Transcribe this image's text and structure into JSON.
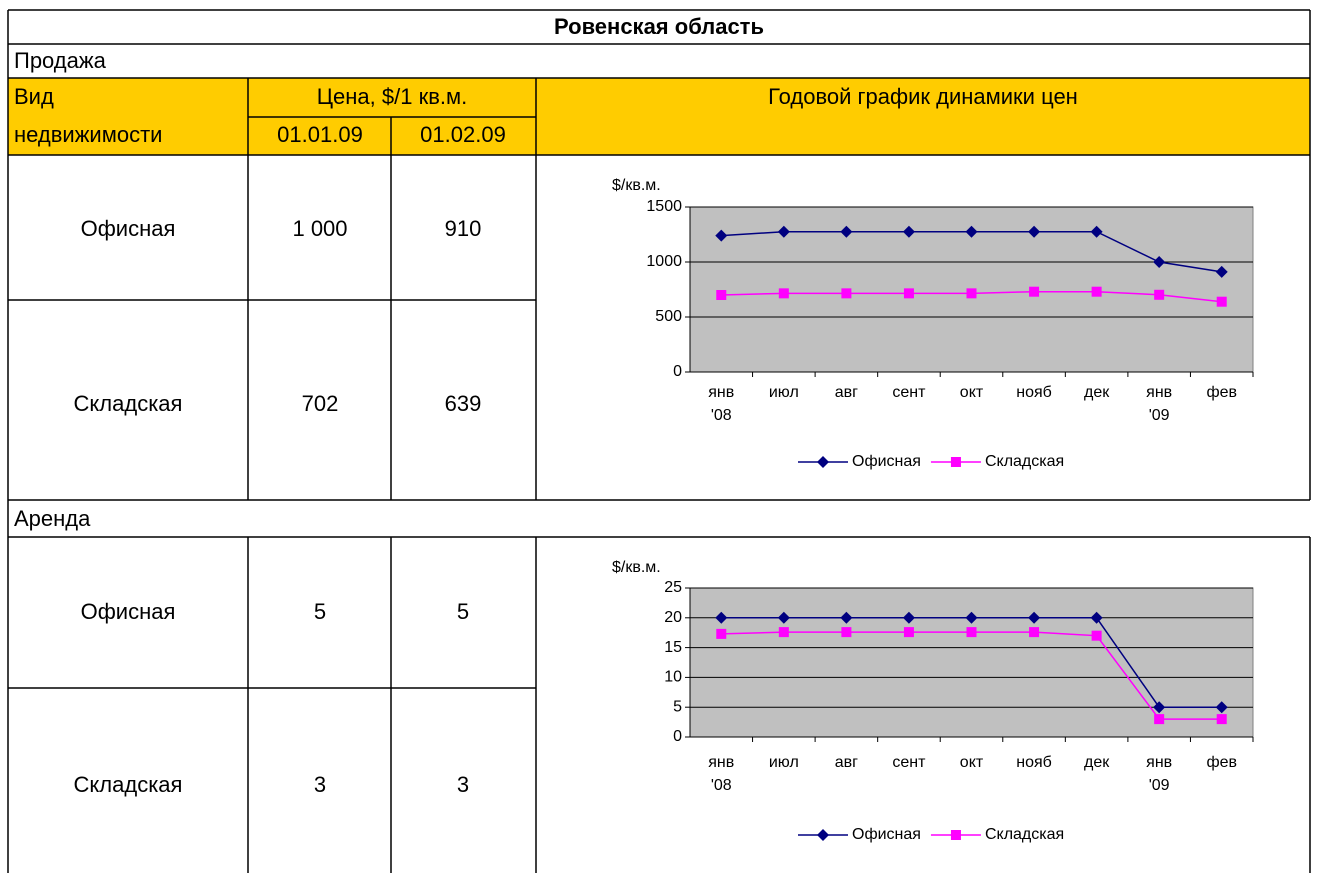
{
  "title": "Ровенская область",
  "header": {
    "type_label": [
      "Вид",
      "недвижимости"
    ],
    "price_label": "Цена, $/1 кв.м.",
    "dates": [
      "01.01.09",
      "01.02.09"
    ],
    "chart_label": "Годовой график динамики цен"
  },
  "sale": {
    "label": "Продажа",
    "rows": [
      [
        "Офисная",
        "1 000",
        "910"
      ],
      [
        "Складская",
        "702",
        "639"
      ]
    ]
  },
  "rent": {
    "label": "Аренда",
    "rows": [
      [
        "Офисная",
        "5",
        "5"
      ],
      [
        "Складская",
        "3",
        "3"
      ]
    ]
  },
  "chart_data": [
    {
      "type": "line",
      "y_label": "$/кв.м.",
      "categories": [
        "янв '08",
        "июл",
        "авг",
        "сент",
        "окт",
        "нояб",
        "дек",
        "янв '09",
        "фев"
      ],
      "series": [
        {
          "name": "Офисная",
          "color": "#000080",
          "marker": "diamond",
          "values": [
            1240,
            1275,
            1275,
            1275,
            1275,
            1275,
            1275,
            1000,
            910
          ]
        },
        {
          "name": "Складская",
          "color": "#ff00ff",
          "marker": "square",
          "values": [
            700,
            715,
            715,
            715,
            715,
            730,
            730,
            702,
            639
          ]
        }
      ],
      "ylim": [
        0,
        1500
      ],
      "yticks": [
        0,
        500,
        1000,
        1500
      ],
      "grid": true,
      "legend": "bottom"
    },
    {
      "type": "line",
      "y_label": "$/кв.м.",
      "categories": [
        "янв '08",
        "июл",
        "авг",
        "сент",
        "окт",
        "нояб",
        "дек",
        "янв '09",
        "фев"
      ],
      "series": [
        {
          "name": "Офисная",
          "color": "#000080",
          "marker": "diamond",
          "values": [
            20,
            20,
            20,
            20,
            20,
            20,
            20,
            5,
            5
          ]
        },
        {
          "name": "Складская",
          "color": "#ff00ff",
          "marker": "square",
          "values": [
            17.3,
            17.6,
            17.6,
            17.6,
            17.6,
            17.6,
            17,
            3,
            3
          ]
        }
      ],
      "ylim": [
        0,
        25
      ],
      "yticks": [
        0,
        5,
        10,
        15,
        20,
        25
      ],
      "grid": true,
      "legend": "bottom"
    }
  ]
}
